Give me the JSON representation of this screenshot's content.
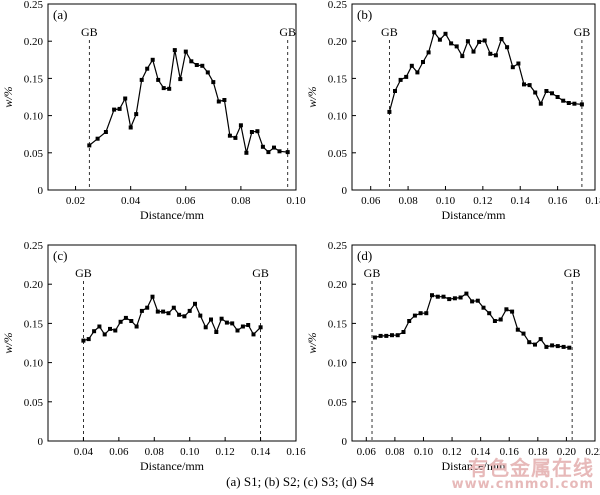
{
  "caption": "(a) S1; (b) S2; (c) S3; (d) S4",
  "watermark": {
    "text": "有色金属在线",
    "url": "www.cnnmol.com"
  },
  "chart_data": [
    {
      "type": "line",
      "panel_label": "(a)",
      "xlabel": "Distance/mm",
      "ylabel": "w/%",
      "xlim": [
        0.01,
        0.1
      ],
      "ylim": [
        0,
        0.25
      ],
      "xticks": [
        0.02,
        0.04,
        0.06,
        0.08,
        0.1
      ],
      "yticks": [
        0,
        0.05,
        0.1,
        0.15,
        0.2,
        0.25
      ],
      "gb_lines": [
        0.025,
        0.097
      ],
      "gb_label": "GB",
      "x": [
        0.025,
        0.028,
        0.031,
        0.034,
        0.036,
        0.038,
        0.04,
        0.042,
        0.044,
        0.046,
        0.048,
        0.05,
        0.052,
        0.054,
        0.056,
        0.058,
        0.06,
        0.062,
        0.064,
        0.066,
        0.068,
        0.07,
        0.072,
        0.074,
        0.076,
        0.078,
        0.08,
        0.082,
        0.084,
        0.086,
        0.088,
        0.09,
        0.092,
        0.094,
        0.097
      ],
      "y": [
        0.06,
        0.069,
        0.078,
        0.108,
        0.109,
        0.123,
        0.084,
        0.102,
        0.148,
        0.163,
        0.175,
        0.148,
        0.137,
        0.136,
        0.188,
        0.149,
        0.186,
        0.173,
        0.168,
        0.167,
        0.158,
        0.145,
        0.119,
        0.121,
        0.073,
        0.07,
        0.087,
        0.05,
        0.078,
        0.079,
        0.058,
        0.051,
        0.057,
        0.052,
        0.051
      ]
    },
    {
      "type": "line",
      "panel_label": "(b)",
      "xlabel": "Distance/mm",
      "ylabel": "w/%",
      "xlim": [
        0.05,
        0.18
      ],
      "ylim": [
        0,
        0.25
      ],
      "xticks": [
        0.06,
        0.08,
        0.1,
        0.12,
        0.14,
        0.16,
        0.18
      ],
      "yticks": [
        0,
        0.05,
        0.1,
        0.15,
        0.2,
        0.25
      ],
      "gb_lines": [
        0.07,
        0.173
      ],
      "gb_label": "GB",
      "x": [
        0.07,
        0.073,
        0.076,
        0.079,
        0.082,
        0.085,
        0.088,
        0.091,
        0.094,
        0.097,
        0.1,
        0.103,
        0.106,
        0.109,
        0.112,
        0.115,
        0.118,
        0.121,
        0.124,
        0.127,
        0.13,
        0.133,
        0.136,
        0.139,
        0.142,
        0.145,
        0.148,
        0.151,
        0.154,
        0.157,
        0.16,
        0.163,
        0.166,
        0.169,
        0.173
      ],
      "y": [
        0.105,
        0.133,
        0.148,
        0.152,
        0.167,
        0.158,
        0.172,
        0.185,
        0.212,
        0.202,
        0.21,
        0.197,
        0.193,
        0.18,
        0.2,
        0.186,
        0.199,
        0.201,
        0.183,
        0.181,
        0.203,
        0.192,
        0.165,
        0.17,
        0.142,
        0.141,
        0.131,
        0.116,
        0.133,
        0.13,
        0.125,
        0.12,
        0.117,
        0.116,
        0.115
      ]
    },
    {
      "type": "line",
      "panel_label": "(c)",
      "xlabel": "Distance/mm",
      "ylabel": "w/%",
      "xlim": [
        0.02,
        0.16
      ],
      "ylim": [
        0,
        0.25
      ],
      "xticks": [
        0.04,
        0.06,
        0.08,
        0.1,
        0.12,
        0.14,
        0.16
      ],
      "yticks": [
        0,
        0.05,
        0.1,
        0.15,
        0.2,
        0.25
      ],
      "gb_lines": [
        0.04,
        0.14
      ],
      "gb_label": "GB",
      "x": [
        0.04,
        0.043,
        0.046,
        0.049,
        0.052,
        0.055,
        0.058,
        0.061,
        0.064,
        0.067,
        0.07,
        0.073,
        0.076,
        0.079,
        0.082,
        0.085,
        0.088,
        0.091,
        0.094,
        0.097,
        0.1,
        0.103,
        0.106,
        0.109,
        0.112,
        0.115,
        0.118,
        0.121,
        0.124,
        0.127,
        0.13,
        0.133,
        0.136,
        0.14
      ],
      "y": [
        0.128,
        0.13,
        0.14,
        0.146,
        0.136,
        0.143,
        0.141,
        0.152,
        0.157,
        0.153,
        0.146,
        0.166,
        0.17,
        0.184,
        0.165,
        0.165,
        0.163,
        0.17,
        0.161,
        0.159,
        0.166,
        0.175,
        0.16,
        0.145,
        0.155,
        0.139,
        0.156,
        0.151,
        0.15,
        0.141,
        0.146,
        0.148,
        0.136,
        0.145
      ]
    },
    {
      "type": "line",
      "panel_label": "(d)",
      "xlabel": "Distance/mm",
      "ylabel": "w/%",
      "xlim": [
        0.05,
        0.22
      ],
      "ylim": [
        0,
        0.25
      ],
      "xticks": [
        0.06,
        0.08,
        0.1,
        0.12,
        0.14,
        0.16,
        0.18,
        0.2,
        0.22
      ],
      "yticks": [
        0,
        0.05,
        0.1,
        0.15,
        0.2,
        0.25
      ],
      "gb_lines": [
        0.064,
        0.204
      ],
      "gb_label": "GB",
      "x": [
        0.066,
        0.07,
        0.074,
        0.078,
        0.082,
        0.086,
        0.09,
        0.094,
        0.098,
        0.102,
        0.106,
        0.11,
        0.114,
        0.118,
        0.122,
        0.126,
        0.13,
        0.134,
        0.138,
        0.142,
        0.146,
        0.15,
        0.154,
        0.158,
        0.162,
        0.166,
        0.17,
        0.174,
        0.178,
        0.182,
        0.186,
        0.19,
        0.194,
        0.198,
        0.202
      ],
      "y": [
        0.132,
        0.134,
        0.134,
        0.135,
        0.135,
        0.139,
        0.153,
        0.16,
        0.163,
        0.163,
        0.186,
        0.184,
        0.184,
        0.181,
        0.182,
        0.183,
        0.188,
        0.178,
        0.179,
        0.17,
        0.163,
        0.153,
        0.155,
        0.168,
        0.165,
        0.142,
        0.137,
        0.126,
        0.123,
        0.13,
        0.12,
        0.122,
        0.121,
        0.12,
        0.119
      ]
    }
  ]
}
